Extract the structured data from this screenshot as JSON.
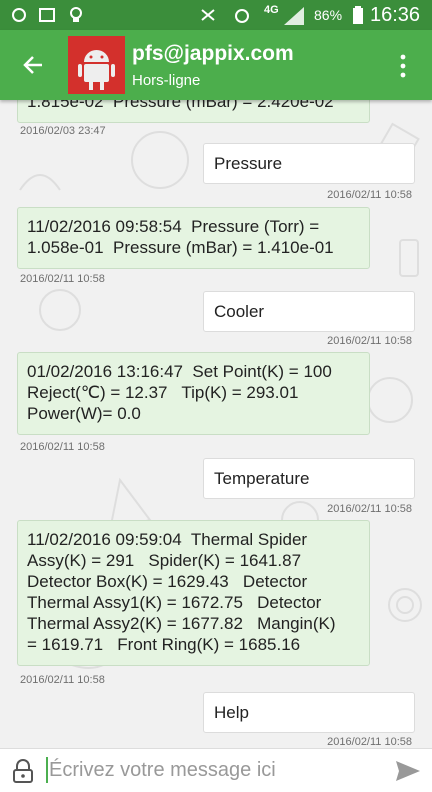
{
  "status_bar": {
    "network": "4G",
    "battery": "86%",
    "time": "16:36"
  },
  "app_bar": {
    "contact": "pfs@jappix.com",
    "status": "Hors-ligne"
  },
  "messages": [
    {
      "direction": "received",
      "lines": [
        "1.815e-02  Pressure (mBar) = 2.420e-02"
      ],
      "timestamp": "2016/02/03 23:47"
    },
    {
      "direction": "sent",
      "lines": [
        "Pressure"
      ],
      "timestamp": "2016/02/11 10:58"
    },
    {
      "direction": "received",
      "lines": [
        "11/02/2016 09:58:54  Pressure (Torr) =",
        "1.058e-01  Pressure (mBar) = 1.410e-01"
      ],
      "timestamp": "2016/02/11 10:58"
    },
    {
      "direction": "sent",
      "lines": [
        "Cooler"
      ],
      "timestamp": "2016/02/11 10:58"
    },
    {
      "direction": "received",
      "lines": [
        "01/02/2016 13:16:47  Set Point(K) = 100",
        "Reject(℃) = 12.37   Tip(K) = 293.01",
        "Power(W)= 0.0"
      ],
      "timestamp": "2016/02/11 10:58"
    },
    {
      "direction": "sent",
      "lines": [
        "Temperature"
      ],
      "timestamp": "2016/02/11 10:58"
    },
    {
      "direction": "received",
      "lines": [
        "11/02/2016 09:59:04  Thermal Spider",
        "Assy(K) = 291   Spider(K) = 1641.87",
        "Detector Box(K) = 1629.43   Detector",
        "Thermal Assy1(K) = 1672.75   Detector",
        "Thermal Assy2(K) = 1677.82   Mangin(K)",
        "= 1619.71   Front Ring(K) = 1685.16"
      ],
      "timestamp": "2016/02/11 10:58"
    },
    {
      "direction": "sent",
      "lines": [
        "Help"
      ],
      "timestamp": "2016/02/11 10:58"
    }
  ],
  "input": {
    "placeholder": "Écrivez votre message ici"
  }
}
